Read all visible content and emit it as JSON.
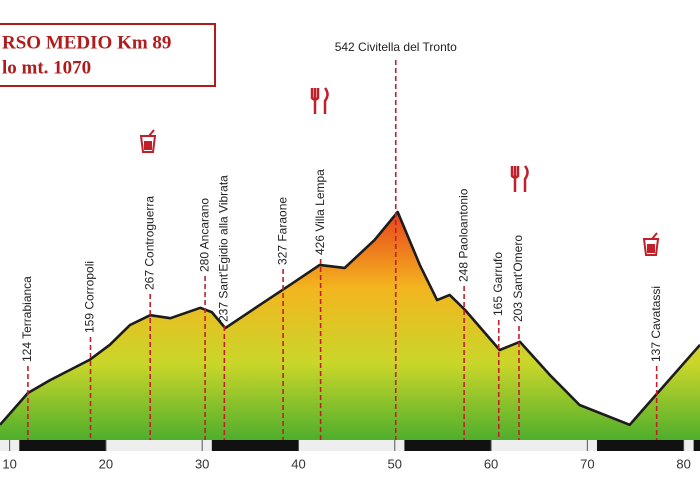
{
  "chart_data": {
    "type": "area",
    "title": "RSO MEDIO Km 89",
    "subtitle": "lo mt. 1070",
    "x": [
      9,
      11.9,
      14.2,
      18.3,
      20.4,
      22.5,
      24.6,
      26.7,
      29.8,
      31.0,
      32.4,
      36.0,
      39.1,
      42.2,
      44.8,
      47.9,
      50.3,
      52.6,
      54.4,
      55.7,
      57.3,
      60.9,
      63.0,
      66.1,
      69.2,
      74.4,
      77.3,
      81.7
    ],
    "values": [
      47,
      121,
      151,
      198,
      233,
      279,
      302,
      295,
      319,
      309,
      272,
      326,
      372,
      419,
      412,
      477,
      542,
      419,
      337,
      349,
      314,
      221,
      240,
      163,
      93,
      47,
      121,
      233
    ],
    "xlim": [
      9,
      81.7
    ],
    "ylim": [
      0,
      1035
    ],
    "xticks": [
      10,
      20,
      30,
      40,
      50,
      60,
      70,
      80
    ],
    "line_color": "#1c1c1c",
    "fill_colors": [
      "#e8431c",
      "#f3b51f",
      "#c9d62a",
      "#4fae2c"
    ],
    "marker_color": "#c0202a",
    "waypoints": [
      {
        "label": "124 Terrabianca",
        "km": 11.9
      },
      {
        "label": "159 Corropoli",
        "km": 18.4
      },
      {
        "label": "267 Controguerra",
        "km": 24.6
      },
      {
        "label": "280 Ancarano",
        "km": 30.3
      },
      {
        "label": "237 Sant'Egidio alla Vibrata",
        "km": 32.3
      },
      {
        "label": "327 Faraone",
        "km": 38.4
      },
      {
        "label": "426 Villa Lempa",
        "km": 42.3
      },
      {
        "label": "542 Civitella del Tronto",
        "km": 50.1
      },
      {
        "label": "248 Paoloantonio",
        "km": 57.2
      },
      {
        "label": "165 Garrufo",
        "km": 60.8
      },
      {
        "label": "203 Sant'Omero",
        "km": 62.9
      },
      {
        "label": "137 Cavatassi",
        "km": 77.2
      }
    ]
  }
}
